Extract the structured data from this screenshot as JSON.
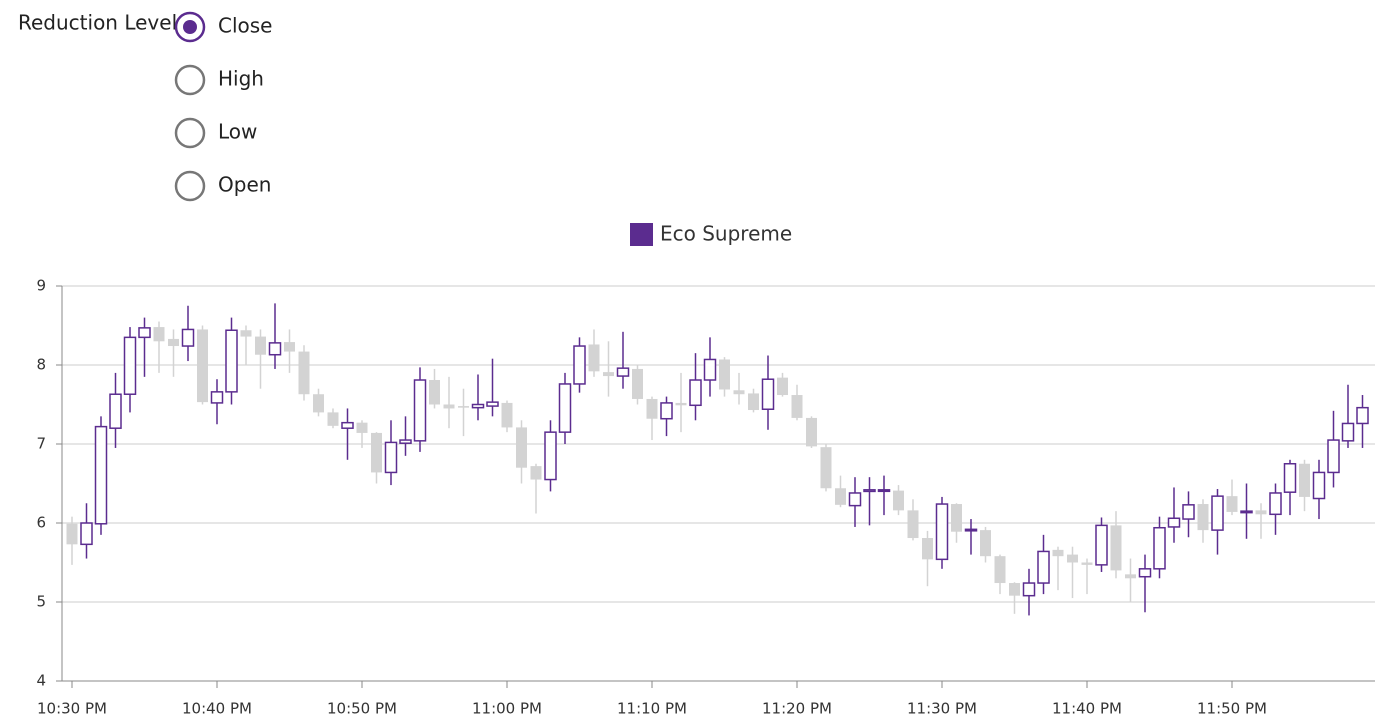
{
  "ui": {
    "label": "Reduction Level:",
    "options": [
      "Close",
      "High",
      "Low",
      "Open"
    ],
    "selected": "Close"
  },
  "chart_data": {
    "type": "candlestick",
    "categories": [
      "10:30 PM",
      null,
      null,
      null,
      null,
      null,
      null,
      null,
      null,
      null,
      "10:40 PM",
      null,
      null,
      null,
      null,
      null,
      null,
      null,
      null,
      null,
      "10:50 PM",
      null,
      null,
      null,
      null,
      null,
      null,
      null,
      null,
      null,
      "11:00 PM",
      null,
      null,
      null,
      null,
      null,
      null,
      null,
      null,
      null,
      "11:10 PM",
      null,
      null,
      null,
      null,
      null,
      null,
      null,
      null,
      null,
      "11:20 PM",
      null,
      null,
      null,
      null,
      null,
      null,
      null,
      null,
      null,
      "11:30 PM",
      null,
      null,
      null,
      null,
      null,
      null,
      null,
      null,
      null,
      "11:40 PM",
      null,
      null,
      null,
      null,
      null,
      null,
      null,
      null,
      null,
      "11:50 PM",
      null,
      null,
      null,
      null,
      null,
      null,
      null,
      null,
      null
    ],
    "series": [
      {
        "name": "Eco Supreme",
        "color": "#5b2c8f",
        "down_color": "#d3d3d3",
        "open": [
          5.99,
          5.73,
          5.99,
          7.2,
          7.63,
          8.35,
          8.48,
          8.33,
          8.24,
          8.45,
          7.52,
          7.66,
          8.44,
          8.36,
          8.13,
          8.29,
          8.17,
          7.63,
          7.4,
          7.2,
          7.27,
          7.14,
          6.64,
          7.01,
          7.04,
          7.81,
          7.5,
          7.48,
          7.46,
          7.48,
          7.52,
          7.21,
          6.72,
          6.55,
          7.15,
          7.76,
          8.26,
          7.91,
          7.86,
          7.95,
          7.57,
          7.32,
          7.52,
          7.49,
          7.81,
          8.07,
          7.68,
          7.64,
          7.44,
          7.84,
          7.62,
          7.33,
          6.96,
          6.44,
          6.22,
          6.4,
          6.41,
          6.41,
          6.16,
          5.81,
          5.54,
          6.24,
          5.91,
          5.91,
          5.58,
          5.24,
          5.08,
          5.24,
          5.66,
          5.6,
          5.5,
          5.47,
          5.97,
          5.35,
          5.32,
          5.42,
          5.95,
          6.05,
          6.24,
          5.91,
          6.34,
          6.14,
          6.16,
          6.11,
          6.39,
          6.75,
          6.31,
          6.64,
          7.04,
          7.26
        ],
        "high": [
          6.08,
          6.25,
          7.35,
          7.9,
          8.48,
          8.6,
          8.55,
          8.45,
          8.75,
          8.5,
          7.82,
          8.6,
          8.5,
          8.45,
          8.78,
          8.45,
          8.25,
          7.7,
          7.45,
          7.45,
          7.3,
          7.15,
          7.3,
          7.35,
          7.97,
          7.95,
          7.85,
          7.7,
          7.88,
          8.08,
          7.55,
          7.3,
          6.75,
          7.3,
          7.9,
          8.35,
          8.45,
          8.3,
          8.42,
          8.0,
          7.6,
          7.6,
          7.9,
          8.15,
          8.35,
          8.1,
          7.9,
          7.7,
          8.12,
          7.9,
          7.75,
          7.35,
          7.0,
          6.6,
          6.58,
          6.58,
          6.6,
          6.48,
          6.3,
          5.9,
          6.33,
          6.25,
          6.05,
          5.95,
          5.6,
          5.25,
          5.42,
          5.85,
          5.7,
          5.7,
          5.55,
          6.07,
          6.15,
          5.55,
          5.6,
          6.08,
          6.45,
          6.4,
          6.3,
          6.43,
          6.55,
          6.5,
          6.25,
          6.5,
          6.8,
          6.8,
          6.8,
          7.42,
          7.75,
          7.62
        ],
        "low": [
          5.47,
          5.55,
          5.85,
          6.95,
          7.4,
          7.85,
          7.9,
          7.85,
          8.05,
          7.5,
          7.25,
          7.5,
          8.0,
          7.7,
          7.95,
          7.9,
          7.55,
          7.35,
          7.2,
          6.8,
          6.95,
          6.5,
          6.48,
          6.85,
          6.9,
          7.45,
          7.2,
          7.1,
          7.3,
          7.35,
          7.15,
          6.5,
          6.12,
          6.4,
          7.0,
          7.65,
          7.85,
          7.6,
          7.7,
          7.5,
          7.05,
          7.1,
          7.15,
          7.3,
          7.6,
          7.6,
          7.5,
          7.4,
          7.18,
          7.6,
          7.3,
          6.95,
          6.4,
          6.2,
          5.95,
          5.97,
          6.1,
          6.1,
          5.78,
          5.2,
          5.42,
          5.75,
          5.6,
          5.5,
          5.1,
          4.85,
          4.83,
          5.1,
          5.15,
          5.05,
          5.1,
          5.38,
          5.3,
          5.0,
          4.87,
          5.3,
          5.75,
          5.82,
          5.75,
          5.6,
          6.1,
          5.8,
          5.8,
          5.85,
          6.1,
          6.15,
          6.05,
          6.45,
          6.95,
          6.95
        ],
        "close": [
          5.73,
          6.0,
          7.22,
          7.63,
          8.35,
          8.47,
          8.3,
          8.24,
          8.45,
          7.53,
          7.66,
          8.44,
          8.36,
          8.13,
          8.28,
          8.17,
          7.63,
          7.4,
          7.23,
          7.27,
          7.14,
          6.64,
          7.02,
          7.05,
          7.81,
          7.5,
          7.45,
          7.46,
          7.5,
          7.53,
          7.21,
          6.7,
          6.55,
          7.15,
          7.76,
          8.24,
          7.92,
          7.86,
          7.96,
          7.57,
          7.32,
          7.52,
          7.49,
          7.81,
          8.07,
          7.69,
          7.63,
          7.43,
          7.82,
          7.62,
          7.33,
          6.97,
          6.44,
          6.23,
          6.38,
          6.42,
          6.42,
          6.16,
          5.81,
          5.54,
          6.24,
          5.89,
          5.92,
          5.58,
          5.24,
          5.08,
          5.24,
          5.64,
          5.58,
          5.5,
          5.47,
          5.97,
          5.4,
          5.3,
          5.42,
          5.94,
          6.06,
          6.23,
          5.91,
          6.34,
          6.14,
          6.15,
          6.11,
          6.38,
          6.75,
          6.33,
          6.64,
          7.05,
          7.26,
          7.46
        ]
      }
    ],
    "ylim": [
      4,
      9
    ],
    "yticks": [
      4,
      5,
      6,
      7,
      8,
      9
    ],
    "grid": true
  }
}
